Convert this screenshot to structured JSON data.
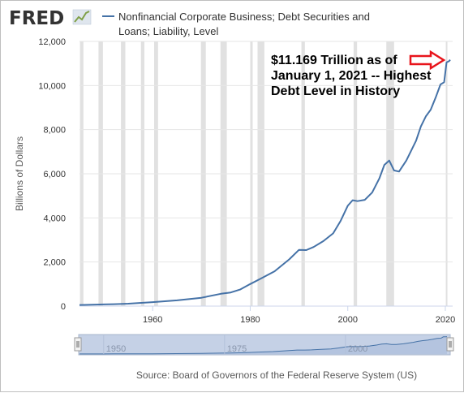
{
  "header": {
    "logo_text": "FRED",
    "legend_label_line1": "Nonfinancial Corporate Business; Debt Securities and",
    "legend_label_line2": "Loans; Liability, Level"
  },
  "annotation": {
    "line1": "$11.169 Trillion as of",
    "line2": "January 1, 2021 -- Highest",
    "line3": "Debt Level in History"
  },
  "source": "Source: Board of Governors of the Federal Reserve System (US)",
  "colors": {
    "series": "#4572a7",
    "recession": "#e1e1e1",
    "annotation_arrow": "#e8141b",
    "navigator_fill": "#c5d1e6",
    "text_gray": "#595959"
  },
  "chart_data": {
    "type": "line",
    "title": "",
    "xlabel": "",
    "ylabel": "Billions of Dollars",
    "xlim": [
      1945,
      2021.5
    ],
    "ylim": [
      0,
      12000
    ],
    "x_ticks": [
      1960,
      1980,
      2000,
      2020
    ],
    "y_ticks": [
      0,
      2000,
      4000,
      6000,
      8000,
      10000,
      12000
    ],
    "y_tick_labels": [
      "0",
      "2,000",
      "4,000",
      "6,000",
      "8,000",
      "10,000",
      "12,000"
    ],
    "grid": "horizontal",
    "recessions": [
      [
        1945.1,
        1945.8
      ],
      [
        1948.9,
        1949.8
      ],
      [
        1953.5,
        1954.4
      ],
      [
        1957.6,
        1958.3
      ],
      [
        1960.3,
        1961.1
      ],
      [
        1969.9,
        1970.9
      ],
      [
        1973.9,
        1975.2
      ],
      [
        1980.0,
        1980.5
      ],
      [
        1981.5,
        1982.9
      ],
      [
        1990.5,
        1991.2
      ],
      [
        2001.2,
        2001.9
      ],
      [
        2007.9,
        2009.5
      ],
      [
        2020.1,
        2020.4
      ]
    ],
    "series": [
      {
        "name": "Nonfinancial Corporate Business; Debt Securities and Loans; Liability, Level",
        "x": [
          1945.0,
          1946.0,
          1952.0,
          1955.0,
          1960.0,
          1965.0,
          1970.0,
          1974.0,
          1976.0,
          1978.0,
          1980.0,
          1982.0,
          1985.0,
          1988.0,
          1990.0,
          1991.5,
          1993.0,
          1995.0,
          1997.0,
          1998.5,
          2000.0,
          2001.0,
          2002.0,
          2003.5,
          2005.0,
          2006.5,
          2007.5,
          2008.5,
          2009.5,
          2010.5,
          2012.0,
          2014.0,
          2015.0,
          2016.0,
          2017.0,
          2018.0,
          2019.0,
          2019.75,
          2020.25,
          2020.75,
          2021.0
        ],
        "values": [
          50,
          55,
          90,
          110,
          180,
          260,
          380,
          560,
          620,
          760,
          1000,
          1230,
          1580,
          2120,
          2550,
          2540,
          2680,
          2950,
          3300,
          3850,
          4550,
          4800,
          4760,
          4820,
          5150,
          5800,
          6400,
          6600,
          6150,
          6100,
          6600,
          7500,
          8150,
          8600,
          8900,
          9450,
          10050,
          10150,
          11050,
          11100,
          11169
        ]
      }
    ],
    "annotations": [
      "$11.169 Trillion as of January 1, 2021 -- Highest Debt Level in History"
    ]
  },
  "navigator": {
    "tick_labels": [
      "1950",
      "1975",
      "2000"
    ],
    "tick_years": [
      1950,
      1975,
      2000
    ]
  }
}
